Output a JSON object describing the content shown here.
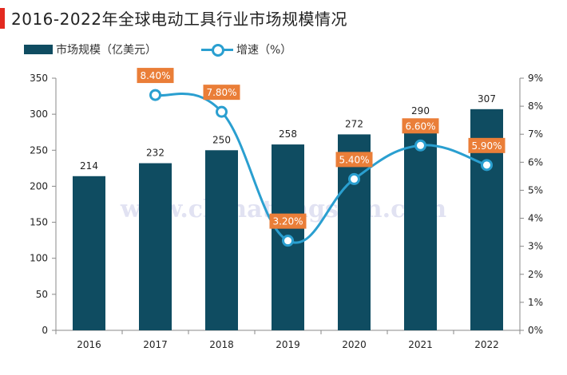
{
  "title": "2016-2022年全球电动工具行业市场规模情况",
  "legend": {
    "bar_label": "市场规模（亿美元）",
    "line_label": "增速（%）"
  },
  "watermark": "www.chinatungsten.com",
  "colors": {
    "bar": "#0f4c61",
    "line": "#2a9fd0",
    "label_box": "#ea7e38",
    "title_accent": "#e32a20"
  },
  "chart_data": {
    "type": "bar",
    "categories": [
      "2016",
      "2017",
      "2018",
      "2019",
      "2020",
      "2021",
      "2022"
    ],
    "series": [
      {
        "name": "市场规模（亿美元）",
        "type": "bar",
        "axis": "left",
        "values": [
          214,
          232,
          250,
          258,
          272,
          290,
          307
        ],
        "labels": [
          "214",
          "232",
          "250",
          "258",
          "272",
          "290",
          "307"
        ]
      },
      {
        "name": "增速（%）",
        "type": "line",
        "axis": "right",
        "values": [
          null,
          8.4,
          7.8,
          3.2,
          5.4,
          6.6,
          5.9
        ],
        "labels": [
          "",
          "8.40%",
          "7.80%",
          "3.20%",
          "5.40%",
          "6.60%",
          "5.90%"
        ]
      }
    ],
    "ylim_left": [
      0,
      350
    ],
    "yticks_left": [
      "0",
      "50",
      "100",
      "150",
      "200",
      "250",
      "300",
      "350"
    ],
    "ylim_right": [
      0,
      9
    ],
    "yticks_right": [
      "0%",
      "1%",
      "2%",
      "3%",
      "4%",
      "5%",
      "6%",
      "7%",
      "8%",
      "9%"
    ],
    "legend_position": "top-left",
    "grid": false
  }
}
